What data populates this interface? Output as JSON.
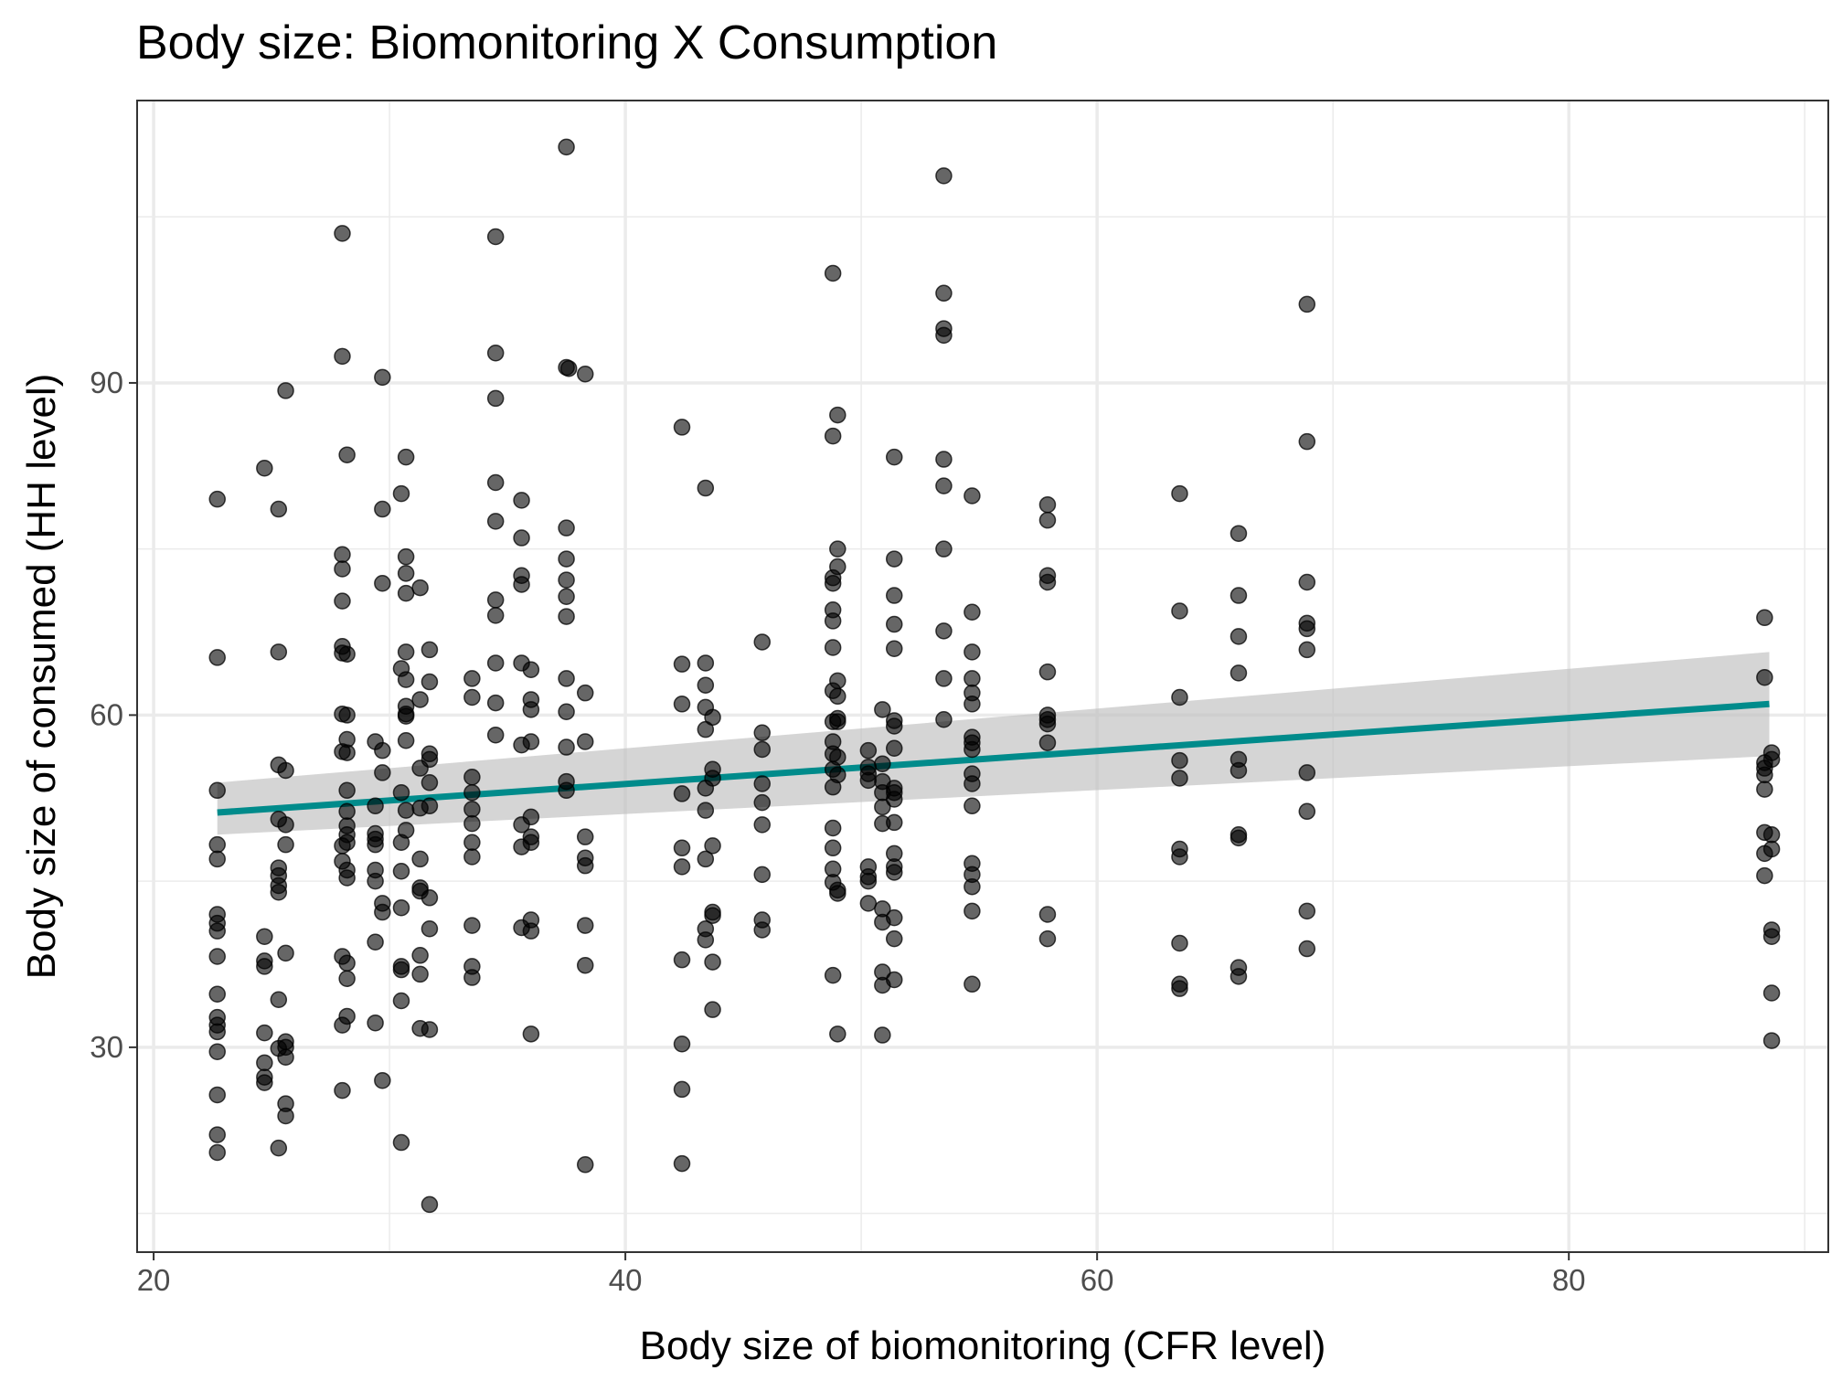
{
  "chart_data": {
    "type": "scatter",
    "title": "Body size: Biomonitoring X Consumption",
    "xlabel": "Body size of biomonitoring (CFR level)",
    "ylabel": "Body size of consumed (HH level)",
    "xlim": [
      19.3,
      91.0
    ],
    "ylim": [
      11.5,
      115.5
    ],
    "x_ticks": [
      20,
      40,
      60,
      80
    ],
    "y_ticks": [
      30,
      60,
      90
    ],
    "x_minor": [
      30,
      50,
      70,
      90
    ],
    "y_minor": [
      15,
      45,
      75,
      105
    ],
    "grid": true,
    "colors": {
      "points": "#000000",
      "fit_line": "#008b8b",
      "ci_band": "#bebebe",
      "grid": "#ebebeb",
      "panel_border": "#333333"
    },
    "fit": {
      "x": [
        22.7,
        88.5
      ],
      "y": [
        51.2,
        61.0
      ],
      "ci_lower": [
        49.2,
        56.3
      ],
      "ci_upper": [
        53.9,
        65.7
      ]
    },
    "points": [
      [
        22.7,
        79.5
      ],
      [
        22.7,
        65.2
      ],
      [
        22.7,
        53.2
      ],
      [
        22.7,
        48.3
      ],
      [
        22.7,
        47.0
      ],
      [
        22.7,
        42.0
      ],
      [
        22.7,
        41.2
      ],
      [
        22.7,
        40.5
      ],
      [
        22.7,
        38.2
      ],
      [
        22.7,
        34.8
      ],
      [
        22.7,
        32.7
      ],
      [
        22.7,
        32.0
      ],
      [
        22.7,
        31.4
      ],
      [
        22.7,
        29.6
      ],
      [
        22.7,
        25.7
      ],
      [
        22.7,
        22.1
      ],
      [
        22.7,
        20.5
      ],
      [
        24.7,
        82.3
      ],
      [
        24.7,
        40.0
      ],
      [
        24.7,
        37.8
      ],
      [
        24.7,
        37.3
      ],
      [
        24.7,
        31.3
      ],
      [
        24.7,
        28.6
      ],
      [
        24.7,
        27.3
      ],
      [
        24.7,
        26.8
      ],
      [
        25.3,
        78.6
      ],
      [
        25.3,
        65.7
      ],
      [
        25.3,
        55.5
      ],
      [
        25.3,
        50.6
      ],
      [
        25.3,
        46.2
      ],
      [
        25.3,
        45.5
      ],
      [
        25.3,
        44.6
      ],
      [
        25.3,
        44.0
      ],
      [
        25.3,
        34.3
      ],
      [
        25.3,
        29.9
      ],
      [
        25.3,
        20.9
      ],
      [
        25.6,
        89.3
      ],
      [
        25.6,
        55.0
      ],
      [
        25.6,
        50.1
      ],
      [
        25.6,
        48.3
      ],
      [
        25.6,
        38.5
      ],
      [
        25.6,
        30.5
      ],
      [
        25.6,
        30.0
      ],
      [
        25.6,
        29.1
      ],
      [
        25.6,
        24.9
      ],
      [
        25.6,
        23.8
      ],
      [
        28.0,
        103.5
      ],
      [
        28.0,
        92.4
      ],
      [
        28.0,
        74.5
      ],
      [
        28.0,
        73.2
      ],
      [
        28.0,
        70.3
      ],
      [
        28.0,
        66.2
      ],
      [
        28.0,
        65.6
      ],
      [
        28.0,
        60.1
      ],
      [
        28.0,
        56.7
      ],
      [
        28.0,
        48.2
      ],
      [
        28.0,
        46.8
      ],
      [
        28.0,
        38.2
      ],
      [
        28.0,
        32.0
      ],
      [
        28.0,
        26.1
      ],
      [
        28.2,
        83.5
      ],
      [
        28.2,
        65.5
      ],
      [
        28.2,
        60.0
      ],
      [
        28.2,
        57.8
      ],
      [
        28.2,
        56.6
      ],
      [
        28.2,
        53.2
      ],
      [
        28.2,
        51.3
      ],
      [
        28.2,
        50.0
      ],
      [
        28.2,
        49.2
      ],
      [
        28.2,
        48.5
      ],
      [
        28.2,
        46.0
      ],
      [
        28.2,
        45.3
      ],
      [
        28.2,
        37.6
      ],
      [
        28.2,
        36.2
      ],
      [
        28.2,
        32.8
      ],
      [
        29.4,
        57.6
      ],
      [
        29.4,
        51.8
      ],
      [
        29.4,
        49.3
      ],
      [
        29.4,
        48.8
      ],
      [
        29.4,
        48.3
      ],
      [
        29.4,
        46.0
      ],
      [
        29.4,
        45.0
      ],
      [
        29.4,
        39.5
      ],
      [
        29.4,
        32.2
      ],
      [
        29.7,
        90.5
      ],
      [
        29.7,
        78.6
      ],
      [
        29.7,
        71.9
      ],
      [
        29.7,
        56.8
      ],
      [
        29.7,
        54.8
      ],
      [
        29.7,
        43.0
      ],
      [
        29.7,
        42.2
      ],
      [
        29.7,
        27.0
      ],
      [
        30.5,
        80.0
      ],
      [
        30.5,
        64.2
      ],
      [
        30.5,
        53.0
      ],
      [
        30.5,
        48.5
      ],
      [
        30.5,
        45.9
      ],
      [
        30.5,
        42.6
      ],
      [
        30.5,
        37.3
      ],
      [
        30.5,
        37.0
      ],
      [
        30.5,
        34.2
      ],
      [
        30.5,
        21.4
      ],
      [
        30.7,
        83.3
      ],
      [
        30.7,
        74.3
      ],
      [
        30.7,
        72.8
      ],
      [
        30.7,
        71.0
      ],
      [
        30.7,
        65.7
      ],
      [
        30.7,
        63.2
      ],
      [
        30.7,
        60.8
      ],
      [
        30.7,
        60.1
      ],
      [
        30.7,
        59.9
      ],
      [
        30.7,
        57.7
      ],
      [
        30.7,
        51.4
      ],
      [
        30.7,
        49.6
      ],
      [
        31.3,
        71.5
      ],
      [
        31.3,
        61.4
      ],
      [
        31.3,
        55.2
      ],
      [
        31.3,
        51.6
      ],
      [
        31.3,
        47.0
      ],
      [
        31.3,
        44.4
      ],
      [
        31.3,
        44.1
      ],
      [
        31.3,
        38.3
      ],
      [
        31.3,
        36.6
      ],
      [
        31.3,
        31.7
      ],
      [
        31.7,
        65.9
      ],
      [
        31.7,
        63.0
      ],
      [
        31.7,
        56.5
      ],
      [
        31.7,
        56.0
      ],
      [
        31.7,
        53.9
      ],
      [
        31.7,
        51.8
      ],
      [
        31.7,
        43.5
      ],
      [
        31.7,
        40.7
      ],
      [
        31.7,
        31.6
      ],
      [
        31.7,
        15.8
      ],
      [
        33.5,
        63.3
      ],
      [
        33.5,
        61.6
      ],
      [
        33.5,
        54.4
      ],
      [
        33.5,
        53.0
      ],
      [
        33.5,
        51.5
      ],
      [
        33.5,
        50.2
      ],
      [
        33.5,
        48.5
      ],
      [
        33.5,
        47.2
      ],
      [
        33.5,
        41.0
      ],
      [
        33.5,
        37.3
      ],
      [
        33.5,
        36.3
      ],
      [
        34.5,
        103.2
      ],
      [
        34.5,
        92.7
      ],
      [
        34.5,
        88.6
      ],
      [
        34.5,
        81.0
      ],
      [
        34.5,
        77.5
      ],
      [
        34.5,
        70.4
      ],
      [
        34.5,
        69.0
      ],
      [
        34.5,
        64.7
      ],
      [
        34.5,
        61.1
      ],
      [
        34.5,
        58.2
      ],
      [
        35.6,
        79.4
      ],
      [
        35.6,
        76.0
      ],
      [
        35.6,
        72.6
      ],
      [
        35.6,
        71.8
      ],
      [
        35.6,
        64.7
      ],
      [
        35.6,
        57.3
      ],
      [
        35.6,
        50.1
      ],
      [
        35.6,
        48.1
      ],
      [
        35.6,
        40.8
      ],
      [
        36.0,
        64.1
      ],
      [
        36.0,
        61.4
      ],
      [
        36.0,
        60.5
      ],
      [
        36.0,
        57.6
      ],
      [
        36.0,
        50.8
      ],
      [
        36.0,
        49.0
      ],
      [
        36.0,
        48.5
      ],
      [
        36.0,
        41.5
      ],
      [
        36.0,
        40.5
      ],
      [
        36.0,
        31.2
      ],
      [
        37.5,
        111.3
      ],
      [
        37.5,
        91.4
      ],
      [
        37.5,
        76.9
      ],
      [
        37.5,
        74.1
      ],
      [
        37.5,
        72.2
      ],
      [
        37.5,
        70.7
      ],
      [
        37.5,
        68.9
      ],
      [
        37.5,
        63.3
      ],
      [
        37.5,
        60.3
      ],
      [
        37.5,
        57.1
      ],
      [
        37.5,
        54.0
      ],
      [
        37.5,
        53.2
      ],
      [
        37.6,
        91.3
      ],
      [
        38.3,
        90.8
      ],
      [
        38.3,
        62.0
      ],
      [
        38.3,
        57.6
      ],
      [
        38.3,
        49.0
      ],
      [
        38.3,
        47.1
      ],
      [
        38.3,
        46.4
      ],
      [
        38.3,
        41.0
      ],
      [
        38.3,
        37.4
      ],
      [
        38.3,
        19.4
      ],
      [
        42.4,
        86.0
      ],
      [
        42.4,
        64.6
      ],
      [
        42.4,
        61.0
      ],
      [
        42.4,
        52.9
      ],
      [
        42.4,
        48.0
      ],
      [
        42.4,
        46.3
      ],
      [
        42.4,
        37.9
      ],
      [
        42.4,
        30.3
      ],
      [
        42.4,
        26.2
      ],
      [
        42.4,
        19.5
      ],
      [
        43.4,
        80.5
      ],
      [
        43.4,
        64.7
      ],
      [
        43.4,
        62.7
      ],
      [
        43.4,
        60.7
      ],
      [
        43.4,
        58.7
      ],
      [
        43.4,
        53.4
      ],
      [
        43.4,
        51.4
      ],
      [
        43.4,
        47.0
      ],
      [
        43.4,
        40.7
      ],
      [
        43.4,
        39.7
      ],
      [
        43.7,
        59.8
      ],
      [
        43.7,
        55.1
      ],
      [
        43.7,
        54.3
      ],
      [
        43.7,
        48.2
      ],
      [
        43.7,
        42.2
      ],
      [
        43.7,
        41.9
      ],
      [
        43.7,
        37.7
      ],
      [
        43.7,
        33.4
      ],
      [
        45.8,
        66.6
      ],
      [
        45.8,
        58.4
      ],
      [
        45.8,
        56.9
      ],
      [
        45.8,
        53.8
      ],
      [
        45.8,
        52.1
      ],
      [
        45.8,
        50.1
      ],
      [
        45.8,
        45.6
      ],
      [
        45.8,
        41.5
      ],
      [
        45.8,
        40.6
      ],
      [
        48.8,
        99.9
      ],
      [
        48.8,
        85.2
      ],
      [
        48.8,
        72.4
      ],
      [
        48.8,
        71.9
      ],
      [
        48.8,
        69.5
      ],
      [
        48.8,
        68.5
      ],
      [
        48.8,
        66.1
      ],
      [
        48.8,
        62.2
      ],
      [
        48.8,
        59.4
      ],
      [
        48.8,
        57.6
      ],
      [
        48.8,
        56.5
      ],
      [
        48.8,
        55.1
      ],
      [
        48.8,
        53.5
      ],
      [
        48.8,
        49.8
      ],
      [
        48.8,
        48.0
      ],
      [
        48.8,
        46.1
      ],
      [
        48.8,
        44.9
      ],
      [
        48.8,
        36.5
      ],
      [
        49.0,
        87.1
      ],
      [
        49.0,
        75.0
      ],
      [
        49.0,
        73.4
      ],
      [
        49.0,
        63.1
      ],
      [
        49.0,
        61.7
      ],
      [
        49.0,
        59.7
      ],
      [
        49.0,
        59.4
      ],
      [
        49.0,
        56.2
      ],
      [
        49.0,
        54.6
      ],
      [
        49.0,
        44.2
      ],
      [
        49.0,
        43.9
      ],
      [
        49.0,
        31.2
      ],
      [
        50.3,
        56.8
      ],
      [
        50.3,
        55.3
      ],
      [
        50.3,
        54.7
      ],
      [
        50.3,
        54.1
      ],
      [
        50.3,
        46.3
      ],
      [
        50.3,
        45.4
      ],
      [
        50.3,
        45.0
      ],
      [
        50.3,
        43.0
      ],
      [
        50.9,
        60.5
      ],
      [
        50.9,
        55.6
      ],
      [
        50.9,
        54.0
      ],
      [
        50.9,
        53.0
      ],
      [
        50.9,
        51.7
      ],
      [
        50.9,
        50.2
      ],
      [
        50.9,
        42.5
      ],
      [
        50.9,
        41.3
      ],
      [
        50.9,
        36.8
      ],
      [
        50.9,
        35.6
      ],
      [
        50.9,
        31.1
      ],
      [
        51.4,
        83.3
      ],
      [
        51.4,
        74.1
      ],
      [
        51.4,
        70.8
      ],
      [
        51.4,
        68.2
      ],
      [
        51.4,
        66.0
      ],
      [
        51.4,
        59.5
      ],
      [
        51.4,
        59.0
      ],
      [
        51.4,
        57.0
      ],
      [
        51.4,
        53.4
      ],
      [
        51.4,
        53.0
      ],
      [
        51.4,
        52.4
      ],
      [
        51.4,
        50.3
      ],
      [
        51.4,
        47.5
      ],
      [
        51.4,
        46.3
      ],
      [
        51.4,
        45.8
      ],
      [
        51.4,
        41.7
      ],
      [
        51.4,
        39.8
      ],
      [
        51.4,
        36.1
      ],
      [
        53.5,
        108.7
      ],
      [
        53.5,
        98.1
      ],
      [
        53.5,
        94.9
      ],
      [
        53.5,
        94.3
      ],
      [
        53.5,
        83.1
      ],
      [
        53.5,
        80.7
      ],
      [
        53.5,
        75.0
      ],
      [
        53.5,
        67.6
      ],
      [
        53.5,
        63.3
      ],
      [
        53.5,
        59.6
      ],
      [
        54.7,
        79.8
      ],
      [
        54.7,
        69.3
      ],
      [
        54.7,
        65.7
      ],
      [
        54.7,
        63.3
      ],
      [
        54.7,
        62.0
      ],
      [
        54.7,
        61.0
      ],
      [
        54.7,
        58.0
      ],
      [
        54.7,
        57.5
      ],
      [
        54.7,
        56.9
      ],
      [
        54.7,
        54.7
      ],
      [
        54.7,
        53.8
      ],
      [
        54.7,
        51.8
      ],
      [
        54.7,
        46.6
      ],
      [
        54.7,
        45.6
      ],
      [
        54.7,
        44.5
      ],
      [
        54.7,
        42.3
      ],
      [
        54.7,
        35.7
      ],
      [
        57.9,
        79.0
      ],
      [
        57.9,
        77.6
      ],
      [
        57.9,
        72.6
      ],
      [
        57.9,
        72.0
      ],
      [
        57.9,
        63.9
      ],
      [
        57.9,
        60.0
      ],
      [
        57.9,
        59.6
      ],
      [
        57.9,
        59.2
      ],
      [
        57.9,
        57.5
      ],
      [
        57.9,
        42.0
      ],
      [
        57.9,
        39.8
      ],
      [
        63.5,
        80.0
      ],
      [
        63.5,
        69.4
      ],
      [
        63.5,
        61.6
      ],
      [
        63.5,
        55.9
      ],
      [
        63.5,
        54.3
      ],
      [
        63.5,
        47.9
      ],
      [
        63.5,
        47.2
      ],
      [
        63.5,
        39.4
      ],
      [
        63.5,
        35.7
      ],
      [
        63.5,
        35.3
      ],
      [
        66.0,
        76.4
      ],
      [
        66.0,
        70.8
      ],
      [
        66.0,
        67.1
      ],
      [
        66.0,
        63.8
      ],
      [
        66.0,
        56.0
      ],
      [
        66.0,
        55.0
      ],
      [
        66.0,
        49.2
      ],
      [
        66.0,
        48.9
      ],
      [
        66.0,
        37.2
      ],
      [
        66.0,
        36.4
      ],
      [
        68.9,
        97.1
      ],
      [
        68.9,
        84.7
      ],
      [
        68.9,
        72.0
      ],
      [
        68.9,
        68.3
      ],
      [
        68.9,
        67.8
      ],
      [
        68.9,
        65.9
      ],
      [
        68.9,
        54.8
      ],
      [
        68.9,
        51.3
      ],
      [
        68.9,
        42.3
      ],
      [
        68.9,
        38.9
      ],
      [
        88.3,
        68.8
      ],
      [
        88.3,
        63.4
      ],
      [
        88.3,
        55.7
      ],
      [
        88.3,
        55.2
      ],
      [
        88.3,
        54.6
      ],
      [
        88.3,
        53.3
      ],
      [
        88.3,
        49.4
      ],
      [
        88.3,
        47.5
      ],
      [
        88.3,
        45.5
      ],
      [
        88.6,
        56.6
      ],
      [
        88.6,
        56.0
      ],
      [
        88.6,
        49.2
      ],
      [
        88.6,
        47.9
      ],
      [
        88.6,
        40.6
      ],
      [
        88.6,
        40.0
      ],
      [
        88.6,
        34.9
      ],
      [
        88.6,
        30.6
      ]
    ]
  }
}
